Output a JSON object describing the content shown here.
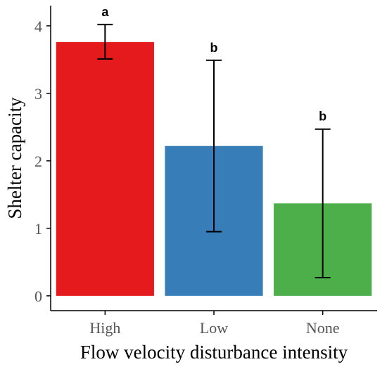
{
  "chart_data": {
    "type": "bar",
    "title": "",
    "xlabel": "Flow velocity disturbance intensity",
    "ylabel": "Shelter capacity",
    "categories": [
      "High",
      "Low",
      "None"
    ],
    "values": [
      3.76,
      2.22,
      1.37
    ],
    "error_low": [
      3.51,
      0.95,
      0.27
    ],
    "error_high": [
      4.02,
      3.49,
      2.47
    ],
    "significance_labels": [
      "a",
      "b",
      "b"
    ],
    "colors": [
      "#e41a1c",
      "#377eb8",
      "#4daf4a"
    ],
    "yticks": [
      0,
      1,
      2,
      3,
      4
    ],
    "ylim": [
      -0.22,
      4.3
    ],
    "grid": false,
    "legend": "none"
  }
}
